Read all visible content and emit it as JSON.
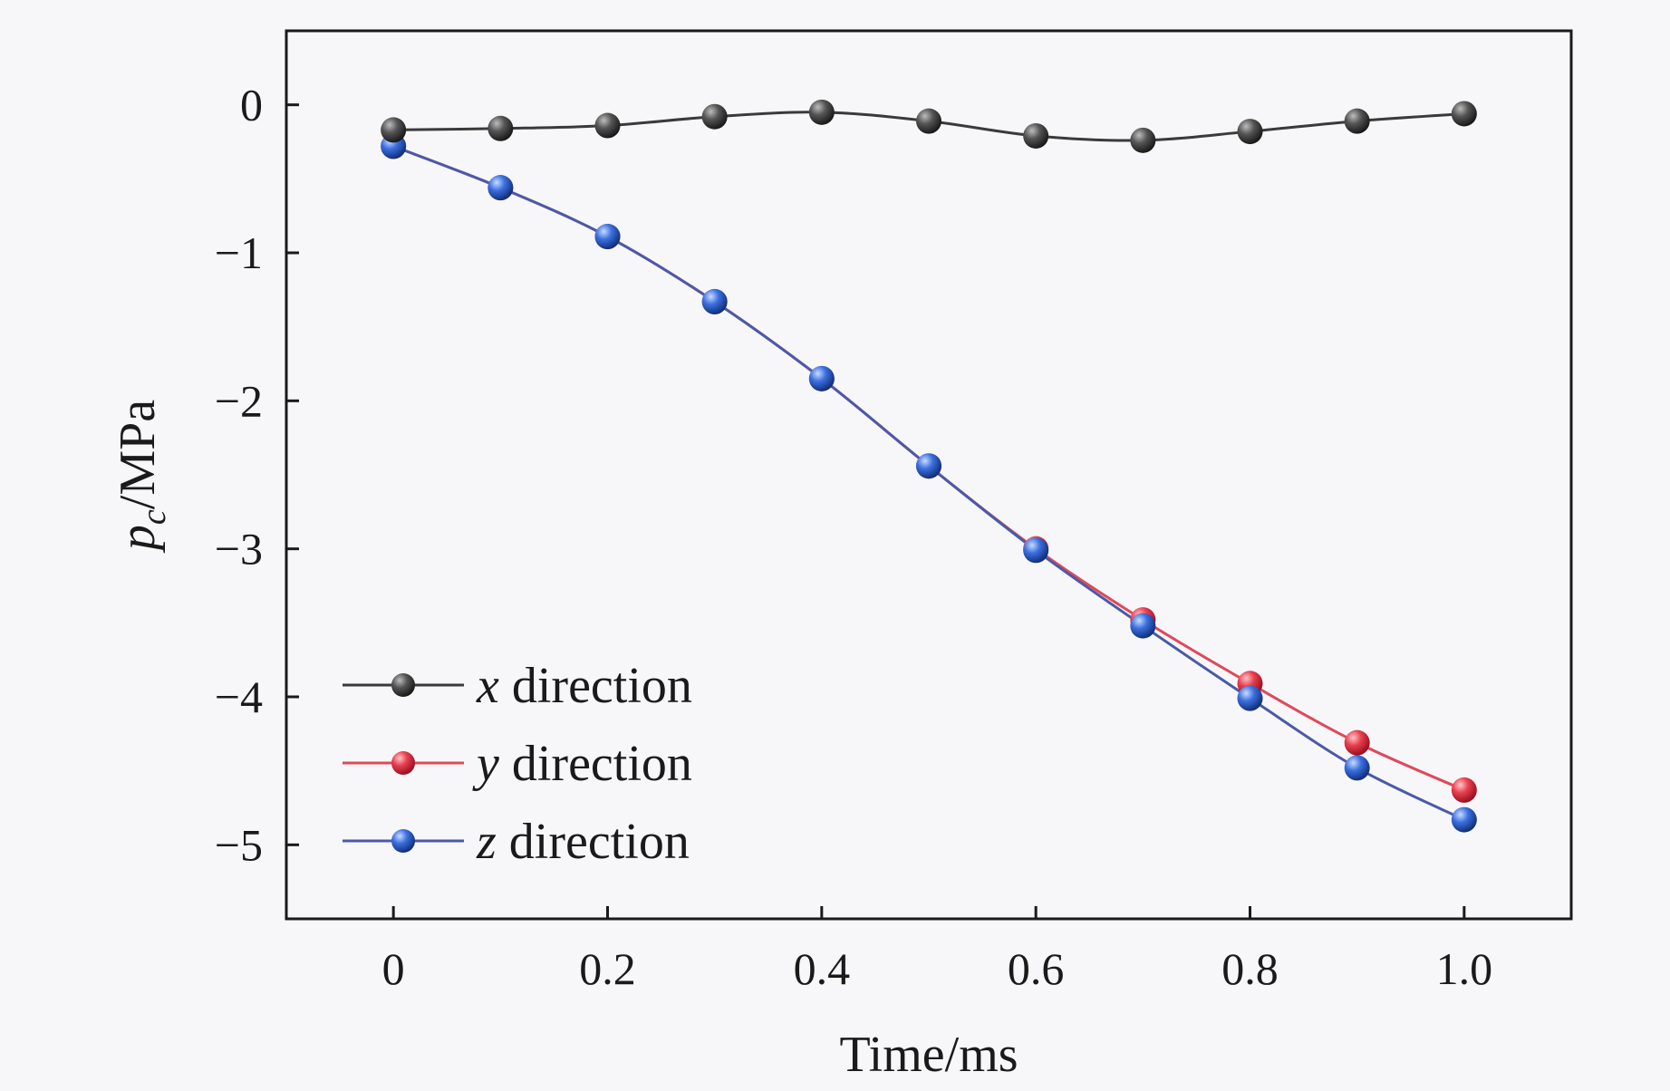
{
  "chart_data": {
    "type": "line",
    "xlabel": "Time/ms",
    "ylabel_main": "p",
    "ylabel_sub": "c",
    "ylabel_unit": "/MPa",
    "xlim": [
      -0.1,
      1.1
    ],
    "ylim": [
      -5.5,
      0.5
    ],
    "x_ticks": [
      0,
      0.2,
      0.4,
      0.6,
      0.8,
      1.0
    ],
    "x_tick_labels": [
      "0",
      "0.2",
      "0.4",
      "0.6",
      "0.8",
      "1.0"
    ],
    "y_ticks": [
      0,
      -1,
      -2,
      -3,
      -4,
      -5
    ],
    "y_tick_labels": [
      "0",
      "−1",
      "−2",
      "−3",
      "−4",
      "−5"
    ],
    "legend_position": "bottom-left",
    "grid": false,
    "x": [
      0,
      0.1,
      0.2,
      0.3,
      0.4,
      0.5,
      0.6,
      0.7,
      0.8,
      0.9,
      1.0
    ],
    "series": [
      {
        "name_var": "x",
        "name_rest": " direction",
        "color": "#3a3a3a",
        "marker_color": "#404040",
        "values": [
          -0.17,
          -0.16,
          -0.14,
          -0.08,
          -0.05,
          -0.11,
          -0.21,
          -0.24,
          -0.18,
          -0.11,
          -0.06
        ]
      },
      {
        "name_var": "y",
        "name_rest": " direction",
        "color": "#e0485a",
        "marker_color": "#e03a48",
        "values": [
          -0.28,
          -0.56,
          -0.89,
          -1.33,
          -1.85,
          -2.44,
          -3.0,
          -3.48,
          -3.91,
          -4.31,
          -4.63
        ]
      },
      {
        "name_var": "z",
        "name_rest": " direction",
        "color": "#4a5aa8",
        "marker_color": "#3a66d8",
        "values": [
          -0.28,
          -0.56,
          -0.89,
          -1.33,
          -1.85,
          -2.44,
          -3.01,
          -3.52,
          -4.01,
          -4.48,
          -4.83
        ]
      }
    ]
  }
}
